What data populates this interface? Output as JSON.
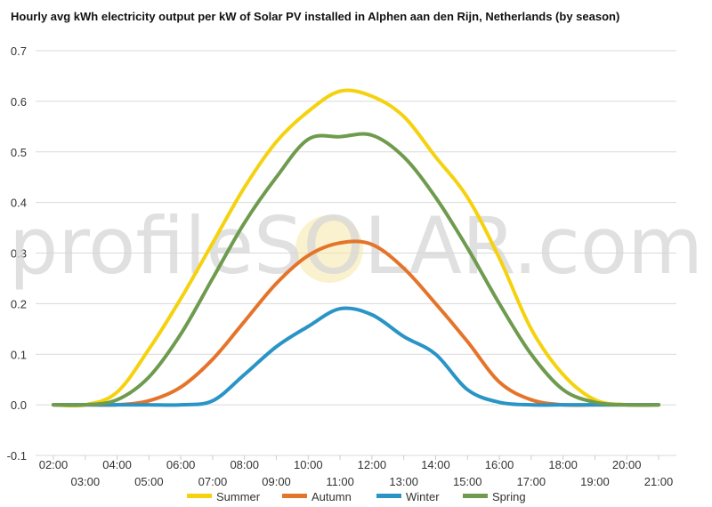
{
  "chart_data": {
    "type": "line",
    "title": "Hourly avg kWh electricity output per kW of Solar PV installed in Alphen aan den Rijn, Netherlands (by season)",
    "xlabel": "",
    "ylabel": "",
    "ylim": [
      -0.1,
      0.7
    ],
    "yticks": [
      "-0.1",
      "0.0",
      "0.1",
      "0.2",
      "0.3",
      "0.4",
      "0.5",
      "0.6",
      "0.7"
    ],
    "x": [
      "02:00",
      "03:00",
      "04:00",
      "05:00",
      "06:00",
      "07:00",
      "08:00",
      "09:00",
      "10:00",
      "11:00",
      "12:00",
      "13:00",
      "14:00",
      "15:00",
      "16:00",
      "17:00",
      "18:00",
      "19:00",
      "20:00",
      "21:00"
    ],
    "grid": true,
    "legend_position": "bottom",
    "watermark": "profileSOLAR.com",
    "series": [
      {
        "name": "Summer",
        "color": "#f5d20f",
        "values": [
          0,
          0,
          0.025,
          0.11,
          0.21,
          0.32,
          0.43,
          0.52,
          0.58,
          0.62,
          0.61,
          0.57,
          0.49,
          0.41,
          0.29,
          0.15,
          0.06,
          0.01,
          0,
          0
        ]
      },
      {
        "name": "Autumn",
        "color": "#e5742b",
        "values": [
          0,
          0,
          0,
          0.008,
          0.035,
          0.09,
          0.165,
          0.24,
          0.295,
          0.32,
          0.317,
          0.27,
          0.2,
          0.125,
          0.045,
          0.01,
          0,
          0,
          0,
          0
        ]
      },
      {
        "name": "Winter",
        "color": "#2994c6",
        "values": [
          0,
          0,
          0,
          0,
          0,
          0.008,
          0.06,
          0.115,
          0.155,
          0.19,
          0.178,
          0.135,
          0.1,
          0.03,
          0.005,
          0,
          0,
          0,
          0,
          0
        ]
      },
      {
        "name": "Spring",
        "color": "#6e9b4e",
        "values": [
          0,
          0,
          0.01,
          0.055,
          0.14,
          0.25,
          0.36,
          0.45,
          0.525,
          0.53,
          0.533,
          0.49,
          0.41,
          0.31,
          0.2,
          0.1,
          0.03,
          0.005,
          0,
          0
        ]
      }
    ]
  }
}
